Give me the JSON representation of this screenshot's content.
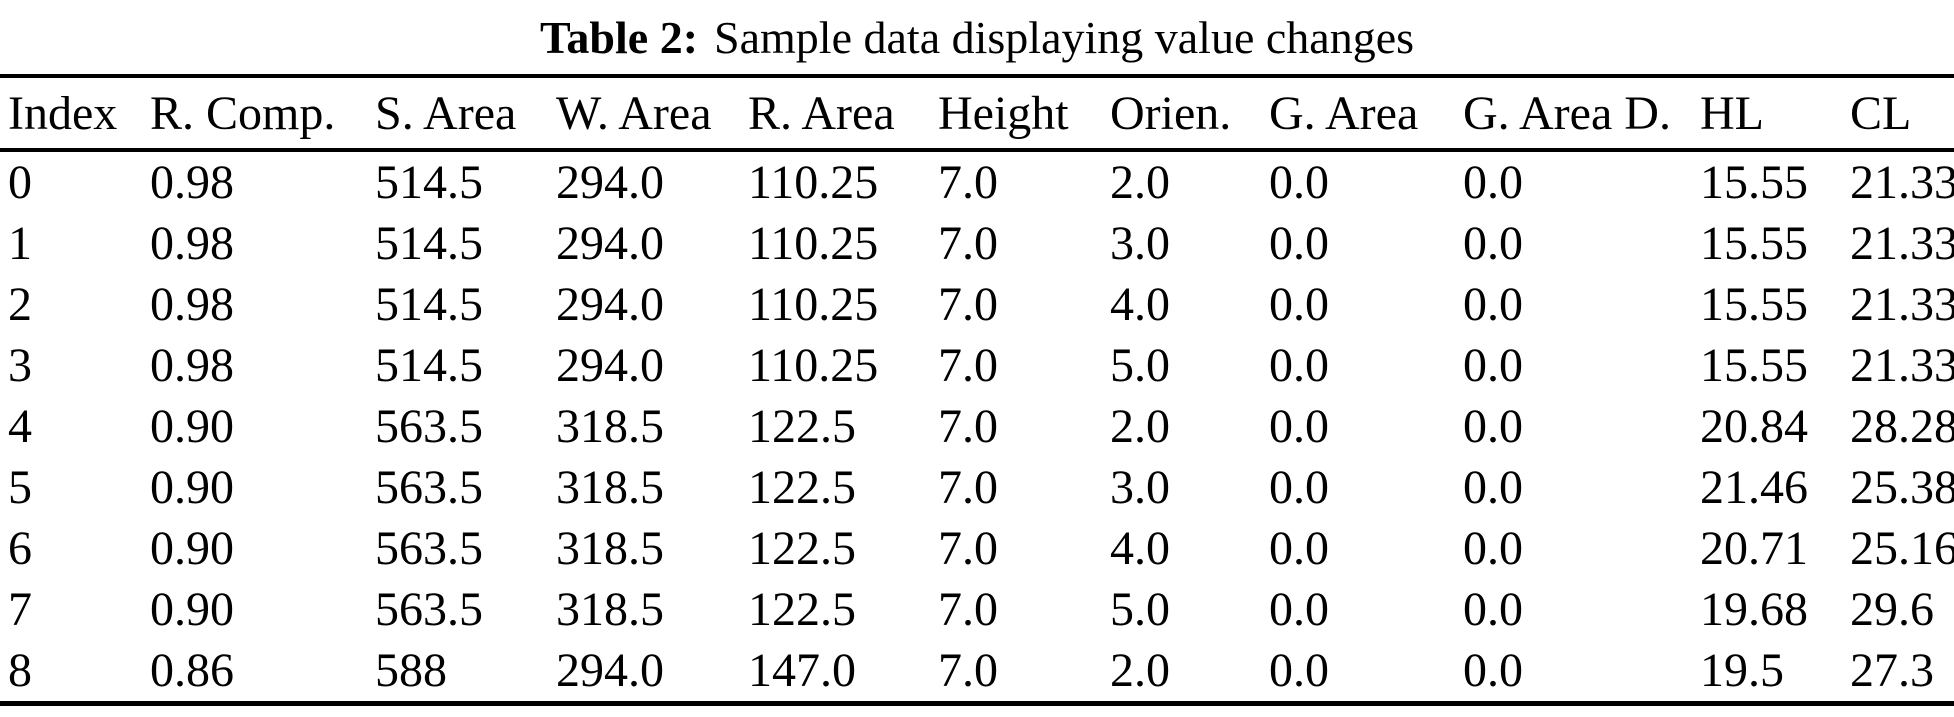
{
  "page": {
    "background_color": "#ffffff",
    "text_color": "#000000",
    "rule_color": "#000000"
  },
  "caption": {
    "label": "Table 2:",
    "text": "Sample data displaying value changes"
  },
  "table": {
    "headers": [
      "Index",
      "R. Comp.",
      "S. Area",
      "W. Area",
      "R. Area",
      "Height",
      "Orien.",
      "G. Area",
      "G. Area D.",
      "HL",
      "CL"
    ],
    "rows": [
      [
        "0",
        "0.98",
        "514.5",
        "294.0",
        "110.25",
        "7.0",
        "2.0",
        "0.0",
        "0.0",
        "15.55",
        "21.33"
      ],
      [
        "1",
        "0.98",
        "514.5",
        "294.0",
        "110.25",
        "7.0",
        "3.0",
        "0.0",
        "0.0",
        "15.55",
        "21.33"
      ],
      [
        "2",
        "0.98",
        "514.5",
        "294.0",
        "110.25",
        "7.0",
        "4.0",
        "0.0",
        "0.0",
        "15.55",
        "21.33"
      ],
      [
        "3",
        "0.98",
        "514.5",
        "294.0",
        "110.25",
        "7.0",
        "5.0",
        "0.0",
        "0.0",
        "15.55",
        "21.33"
      ],
      [
        "4",
        "0.90",
        "563.5",
        "318.5",
        "122.5",
        "7.0",
        "2.0",
        "0.0",
        "0.0",
        "20.84",
        "28.28"
      ],
      [
        "5",
        "0.90",
        "563.5",
        "318.5",
        "122.5",
        "7.0",
        "3.0",
        "0.0",
        "0.0",
        "21.46",
        "25.38"
      ],
      [
        "6",
        "0.90",
        "563.5",
        "318.5",
        "122.5",
        "7.0",
        "4.0",
        "0.0",
        "0.0",
        "20.71",
        "25.16"
      ],
      [
        "7",
        "0.90",
        "563.5",
        "318.5",
        "122.5",
        "7.0",
        "5.0",
        "0.0",
        "0.0",
        "19.68",
        "29.6"
      ],
      [
        "8",
        "0.86",
        "588",
        "294.0",
        "147.0",
        "7.0",
        "2.0",
        "0.0",
        "0.0",
        "19.5",
        "27.3"
      ]
    ]
  }
}
